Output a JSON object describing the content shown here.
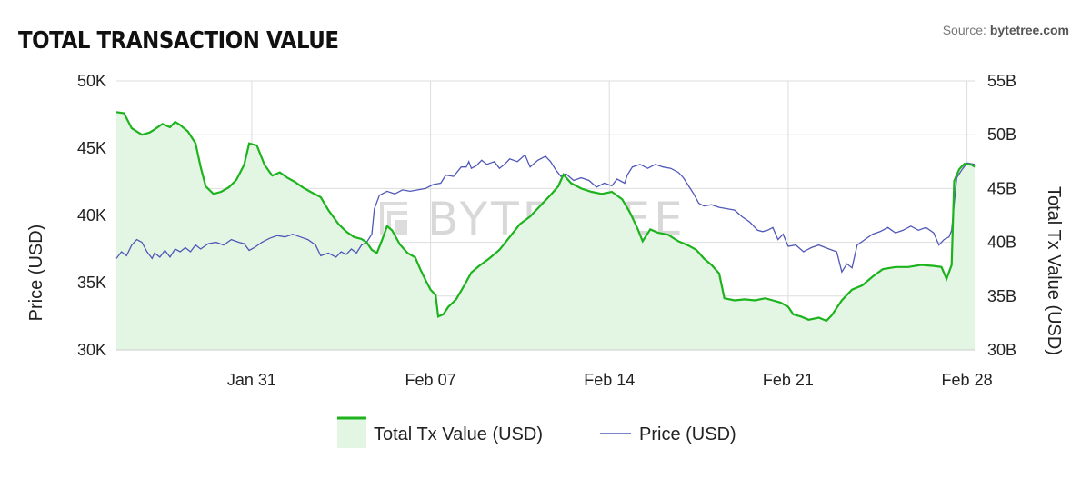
{
  "header": {
    "title": "TOTAL TRANSACTION VALUE",
    "source_label": "Source: ",
    "source_name": "bytetree.com"
  },
  "watermark": "BYTETREE",
  "colors": {
    "tx_line": "#1db31d",
    "tx_fill": "#e3f6e3",
    "price_line": "#5058b8",
    "grid": "#dddddd"
  },
  "chart_data": {
    "type": "line",
    "title": "TOTAL TRANSACTION VALUE",
    "x_ticks": [
      "Jan 31",
      "Feb 07",
      "Feb 14",
      "Feb 21",
      "Feb 28"
    ],
    "x_range": [
      "Jan 25.7",
      "Mar 1.4"
    ],
    "y_left": {
      "label": "Price (USD)",
      "range": [
        30000,
        50000
      ],
      "ticks": [
        "30K",
        "35K",
        "40K",
        "45K",
        "50K"
      ]
    },
    "y_right": {
      "label": "Total Tx Value (USD)",
      "range": [
        30,
        55
      ],
      "ticks": [
        "30B",
        "35B",
        "40B",
        "45B",
        "50B",
        "55B"
      ]
    },
    "legend": {
      "position": "bottom-center"
    },
    "series": [
      {
        "name": "Total Tx Value (USD)",
        "axis": "right",
        "style": "area",
        "points": [
          [
            0.0,
            52.1
          ],
          [
            0.3,
            52.0
          ],
          [
            0.6,
            50.6
          ],
          [
            1.0,
            50.0
          ],
          [
            1.3,
            50.2
          ],
          [
            1.5,
            50.5
          ],
          [
            1.8,
            51.0
          ],
          [
            2.1,
            50.7
          ],
          [
            2.3,
            51.2
          ],
          [
            2.5,
            50.9
          ],
          [
            2.8,
            50.3
          ],
          [
            3.1,
            49.2
          ],
          [
            3.3,
            47.0
          ],
          [
            3.5,
            45.2
          ],
          [
            3.8,
            44.5
          ],
          [
            4.1,
            44.7
          ],
          [
            4.4,
            45.1
          ],
          [
            4.7,
            45.8
          ],
          [
            5.0,
            47.2
          ],
          [
            5.2,
            49.2
          ],
          [
            5.5,
            49.0
          ],
          [
            5.8,
            47.2
          ],
          [
            6.1,
            46.2
          ],
          [
            6.4,
            46.5
          ],
          [
            6.7,
            46.0
          ],
          [
            7.0,
            45.6
          ],
          [
            7.3,
            45.1
          ],
          [
            7.6,
            44.7
          ],
          [
            8.0,
            44.2
          ],
          [
            8.3,
            43.0
          ],
          [
            8.7,
            41.7
          ],
          [
            9.0,
            41.0
          ],
          [
            9.3,
            40.5
          ],
          [
            9.6,
            40.3
          ],
          [
            9.8,
            40.0
          ],
          [
            10.0,
            39.3
          ],
          [
            10.2,
            39.0
          ],
          [
            10.4,
            40.2
          ],
          [
            10.6,
            41.5
          ],
          [
            10.8,
            41.1
          ],
          [
            11.1,
            39.8
          ],
          [
            11.4,
            39.0
          ],
          [
            11.7,
            38.6
          ],
          [
            11.9,
            37.5
          ],
          [
            12.1,
            36.5
          ],
          [
            12.3,
            35.6
          ],
          [
            12.5,
            35.1
          ],
          [
            12.6,
            33.1
          ],
          [
            12.8,
            33.3
          ],
          [
            13.0,
            34.0
          ],
          [
            13.3,
            34.7
          ],
          [
            13.6,
            35.9
          ],
          [
            13.9,
            37.2
          ],
          [
            14.2,
            37.8
          ],
          [
            14.6,
            38.5
          ],
          [
            15.0,
            39.3
          ],
          [
            15.4,
            40.5
          ],
          [
            15.8,
            41.7
          ],
          [
            16.2,
            42.4
          ],
          [
            16.6,
            43.4
          ],
          [
            17.0,
            44.4
          ],
          [
            17.3,
            45.2
          ],
          [
            17.5,
            46.3
          ],
          [
            17.8,
            45.5
          ],
          [
            18.2,
            45.0
          ],
          [
            18.6,
            44.7
          ],
          [
            19.0,
            44.5
          ],
          [
            19.4,
            44.7
          ],
          [
            19.8,
            44.0
          ],
          [
            20.1,
            42.8
          ],
          [
            20.4,
            41.3
          ],
          [
            20.6,
            40.1
          ],
          [
            20.9,
            41.2
          ],
          [
            21.2,
            40.9
          ],
          [
            21.6,
            40.7
          ],
          [
            22.0,
            40.1
          ],
          [
            22.4,
            39.7
          ],
          [
            22.7,
            39.3
          ],
          [
            23.0,
            38.5
          ],
          [
            23.3,
            37.9
          ],
          [
            23.6,
            37.1
          ],
          [
            23.8,
            34.8
          ],
          [
            24.2,
            34.6
          ],
          [
            24.6,
            34.7
          ],
          [
            25.0,
            34.6
          ],
          [
            25.4,
            34.8
          ],
          [
            25.7,
            34.6
          ],
          [
            26.0,
            34.4
          ],
          [
            26.3,
            34.0
          ],
          [
            26.5,
            33.3
          ],
          [
            26.8,
            33.1
          ],
          [
            27.1,
            32.8
          ],
          [
            27.5,
            33.0
          ],
          [
            27.8,
            32.7
          ],
          [
            28.0,
            33.2
          ],
          [
            28.4,
            34.6
          ],
          [
            28.8,
            35.6
          ],
          [
            29.2,
            36.0
          ],
          [
            29.6,
            36.8
          ],
          [
            30.0,
            37.5
          ],
          [
            30.5,
            37.7
          ],
          [
            31.0,
            37.7
          ],
          [
            31.5,
            37.9
          ],
          [
            32.0,
            37.8
          ],
          [
            32.3,
            37.7
          ],
          [
            32.5,
            36.6
          ],
          [
            32.7,
            37.9
          ],
          [
            32.8,
            45.7
          ],
          [
            33.0,
            46.8
          ],
          [
            33.2,
            47.3
          ],
          [
            33.5,
            47.2
          ],
          [
            33.6,
            47.0
          ]
        ]
      },
      {
        "name": "Price (USD)",
        "axis": "left",
        "style": "line",
        "points": [
          [
            0.0,
            36.8
          ],
          [
            0.2,
            37.3
          ],
          [
            0.4,
            37.0
          ],
          [
            0.6,
            37.8
          ],
          [
            0.8,
            38.2
          ],
          [
            1.0,
            38.0
          ],
          [
            1.2,
            37.3
          ],
          [
            1.4,
            36.8
          ],
          [
            1.5,
            37.2
          ],
          [
            1.7,
            36.9
          ],
          [
            1.9,
            37.4
          ],
          [
            2.1,
            36.9
          ],
          [
            2.3,
            37.5
          ],
          [
            2.5,
            37.3
          ],
          [
            2.7,
            37.6
          ],
          [
            2.9,
            37.3
          ],
          [
            3.1,
            37.8
          ],
          [
            3.3,
            37.5
          ],
          [
            3.6,
            37.9
          ],
          [
            3.9,
            38.0
          ],
          [
            4.2,
            37.8
          ],
          [
            4.5,
            38.2
          ],
          [
            4.8,
            38.0
          ],
          [
            5.0,
            37.9
          ],
          [
            5.2,
            37.4
          ],
          [
            5.4,
            37.6
          ],
          [
            5.7,
            38.0
          ],
          [
            6.0,
            38.3
          ],
          [
            6.3,
            38.5
          ],
          [
            6.6,
            38.4
          ],
          [
            6.9,
            38.6
          ],
          [
            7.2,
            38.4
          ],
          [
            7.5,
            38.2
          ],
          [
            7.8,
            37.8
          ],
          [
            8.0,
            37.0
          ],
          [
            8.3,
            37.2
          ],
          [
            8.6,
            36.9
          ],
          [
            8.8,
            37.3
          ],
          [
            9.0,
            37.1
          ],
          [
            9.2,
            37.5
          ],
          [
            9.4,
            37.2
          ],
          [
            9.6,
            37.8
          ],
          [
            9.8,
            38.0
          ],
          [
            10.0,
            38.6
          ],
          [
            10.1,
            40.5
          ],
          [
            10.3,
            41.5
          ],
          [
            10.6,
            41.8
          ],
          [
            10.9,
            41.6
          ],
          [
            11.2,
            41.9
          ],
          [
            11.5,
            41.8
          ],
          [
            11.8,
            41.9
          ],
          [
            12.1,
            42.0
          ],
          [
            12.4,
            42.3
          ],
          [
            12.7,
            42.4
          ],
          [
            12.9,
            43.0
          ],
          [
            13.2,
            42.9
          ],
          [
            13.5,
            43.6
          ],
          [
            13.7,
            43.6
          ],
          [
            13.8,
            44.0
          ],
          [
            13.9,
            43.5
          ],
          [
            14.1,
            43.7
          ],
          [
            14.3,
            44.1
          ],
          [
            14.5,
            43.8
          ],
          [
            14.8,
            44.0
          ],
          [
            15.0,
            43.5
          ],
          [
            15.2,
            43.8
          ],
          [
            15.4,
            44.2
          ],
          [
            15.7,
            44.0
          ],
          [
            16.0,
            44.5
          ],
          [
            16.2,
            43.6
          ],
          [
            16.5,
            44.1
          ],
          [
            16.8,
            44.4
          ],
          [
            17.0,
            44.0
          ],
          [
            17.2,
            43.4
          ],
          [
            17.4,
            42.9
          ],
          [
            17.6,
            43.1
          ],
          [
            17.9,
            42.6
          ],
          [
            18.2,
            42.8
          ],
          [
            18.5,
            42.6
          ],
          [
            18.8,
            42.1
          ],
          [
            19.1,
            42.4
          ],
          [
            19.4,
            42.2
          ],
          [
            19.6,
            42.7
          ],
          [
            19.9,
            42.4
          ],
          [
            20.0,
            43.0
          ],
          [
            20.2,
            43.6
          ],
          [
            20.5,
            43.8
          ],
          [
            20.8,
            43.5
          ],
          [
            21.1,
            43.8
          ],
          [
            21.4,
            43.6
          ],
          [
            21.7,
            43.5
          ],
          [
            22.0,
            43.2
          ],
          [
            22.2,
            42.8
          ],
          [
            22.4,
            42.2
          ],
          [
            22.6,
            41.6
          ],
          [
            22.8,
            40.9
          ],
          [
            23.0,
            40.7
          ],
          [
            23.3,
            40.8
          ],
          [
            23.6,
            40.6
          ],
          [
            23.9,
            40.5
          ],
          [
            24.2,
            40.4
          ],
          [
            24.5,
            39.9
          ],
          [
            24.8,
            39.5
          ],
          [
            25.1,
            38.9
          ],
          [
            25.3,
            38.8
          ],
          [
            25.5,
            38.9
          ],
          [
            25.7,
            39.1
          ],
          [
            25.9,
            38.2
          ],
          [
            26.1,
            38.6
          ],
          [
            26.3,
            37.7
          ],
          [
            26.6,
            37.8
          ],
          [
            26.9,
            37.3
          ],
          [
            27.2,
            37.6
          ],
          [
            27.5,
            37.8
          ],
          [
            27.9,
            37.5
          ],
          [
            28.2,
            37.3
          ],
          [
            28.4,
            35.8
          ],
          [
            28.6,
            36.4
          ],
          [
            28.8,
            36.1
          ],
          [
            29.0,
            37.8
          ],
          [
            29.3,
            38.2
          ],
          [
            29.6,
            38.6
          ],
          [
            29.9,
            38.8
          ],
          [
            30.2,
            39.1
          ],
          [
            30.5,
            38.7
          ],
          [
            30.8,
            38.9
          ],
          [
            31.1,
            39.2
          ],
          [
            31.4,
            38.9
          ],
          [
            31.7,
            39.1
          ],
          [
            32.0,
            38.7
          ],
          [
            32.2,
            37.8
          ],
          [
            32.4,
            38.2
          ],
          [
            32.6,
            38.4
          ],
          [
            32.7,
            38.9
          ],
          [
            32.9,
            42.8
          ],
          [
            33.1,
            43.4
          ],
          [
            33.3,
            43.9
          ],
          [
            33.6,
            43.8
          ]
        ]
      }
    ]
  }
}
